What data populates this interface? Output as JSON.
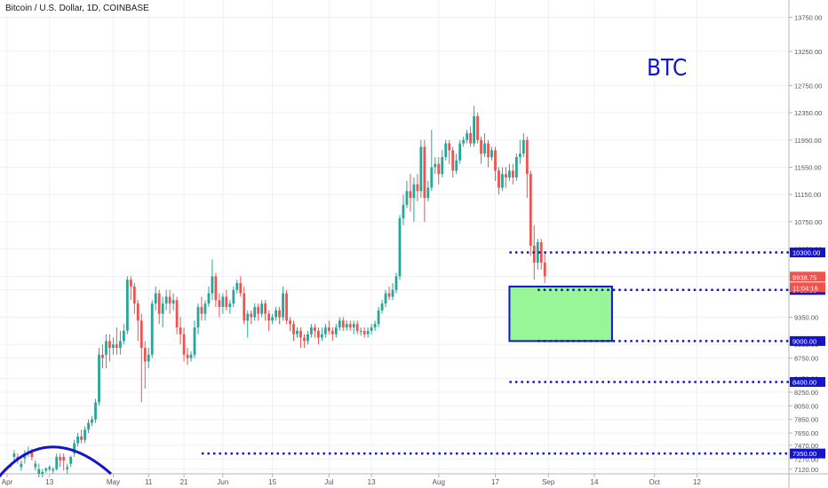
{
  "header": {
    "symbol": "Bitcoin / U.S. Dollar, 1D, COINBASE"
  },
  "annotation": {
    "text": "BTC",
    "color": "#1515c8"
  },
  "colors": {
    "up": "#26a69a",
    "down": "#ef5350",
    "line": "#1515c8",
    "zone_fill": "#98f598",
    "price_badge": "#ef5350"
  },
  "chart_data": {
    "type": "candlestick",
    "ylim": [
      7000,
      13900
    ],
    "y_ticks": [
      "13750.00",
      "13250.00",
      "12750.00",
      "12350.00",
      "11950.00",
      "11550.00",
      "11150.00",
      "10750.00",
      "10350.00",
      "9950.00",
      "9750.00",
      "9350.00",
      "8950.00",
      "8750.00",
      "8450.00",
      "8250.00",
      "8050.00",
      "7850.00",
      "7650.00",
      "7470.00",
      "7270.00",
      "7120.00"
    ],
    "x_ticks": [
      "Apr",
      "13",
      "May",
      "11",
      "21",
      "Jun",
      "15",
      "Jul",
      "13",
      "Aug",
      "17",
      "Sep",
      "14",
      "Oct",
      "12"
    ],
    "x_tick_days": [
      0,
      12,
      30,
      40,
      50,
      61,
      75,
      91,
      103,
      122,
      138,
      153,
      166,
      183,
      195
    ],
    "x_range_days": [
      -2,
      221
    ],
    "horizontal_levels": [
      {
        "price": 10300,
        "label": "10300.00",
        "from_day": 142
      },
      {
        "price": 9750,
        "label": "9750.00",
        "from_day": 150
      },
      {
        "price": 9000,
        "label": "9000.00",
        "from_day": 150
      },
      {
        "price": 8400,
        "label": "8400.00",
        "from_day": 142
      },
      {
        "price": 7350,
        "label": "7350.00",
        "from_day": 55
      }
    ],
    "zone": {
      "from_day": 142,
      "to_day": 171,
      "top": 9800,
      "bottom": 9000
    },
    "current_price": {
      "label": "9938.75",
      "countdown": "11:04:16"
    },
    "candles": [
      {
        "o": 7130,
        "c": 7135,
        "h": 7140,
        "l": 7120
      },
      {
        "o": 7160,
        "c": 7180,
        "h": 7200,
        "l": 7140
      },
      {
        "o": 7300,
        "c": 7350,
        "h": 7400,
        "l": 7250
      },
      {
        "o": 7300,
        "c": 7260,
        "h": 7350,
        "l": 7200
      },
      {
        "o": 7150,
        "c": 7200,
        "h": 7250,
        "l": 7100
      },
      {
        "o": 7280,
        "c": 7350,
        "h": 7400,
        "l": 7200
      },
      {
        "o": 7350,
        "c": 7380,
        "h": 7450,
        "l": 7300
      },
      {
        "o": 7380,
        "c": 7300,
        "h": 7420,
        "l": 7250
      },
      {
        "o": 7150,
        "c": 7200,
        "h": 7250,
        "l": 7100
      },
      {
        "o": 7050,
        "c": 7120,
        "h": 7200,
        "l": 7000
      },
      {
        "o": 7050,
        "c": 7080,
        "h": 7120,
        "l": 7000
      },
      {
        "o": 7100,
        "c": 7130,
        "h": 7150,
        "l": 7070
      },
      {
        "o": 7120,
        "c": 7150,
        "h": 7180,
        "l": 7090
      },
      {
        "o": 7100,
        "c": 7120,
        "h": 7150,
        "l": 7060
      },
      {
        "o": 7120,
        "c": 7300,
        "h": 7350,
        "l": 7100
      },
      {
        "o": 7300,
        "c": 7250,
        "h": 7350,
        "l": 7150
      },
      {
        "o": 7300,
        "c": 7250,
        "h": 7350,
        "l": 7100
      },
      {
        "o": 7120,
        "c": 7150,
        "h": 7200,
        "l": 7050
      },
      {
        "o": 7200,
        "c": 7300,
        "h": 7320,
        "l": 7150
      },
      {
        "o": 7350,
        "c": 7500,
        "h": 7550,
        "l": 7300
      },
      {
        "o": 7500,
        "c": 7600,
        "h": 7650,
        "l": 7450
      },
      {
        "o": 7600,
        "c": 7550,
        "h": 7700,
        "l": 7500
      },
      {
        "o": 7550,
        "c": 7700,
        "h": 7750,
        "l": 7500
      },
      {
        "o": 7700,
        "c": 7800,
        "h": 7850,
        "l": 7650
      },
      {
        "o": 7800,
        "c": 7850,
        "h": 7900,
        "l": 7750
      },
      {
        "o": 7850,
        "c": 8100,
        "h": 8150,
        "l": 7800
      },
      {
        "o": 8100,
        "c": 8800,
        "h": 8900,
        "l": 8050
      },
      {
        "o": 8800,
        "c": 8750,
        "h": 8950,
        "l": 8600
      },
      {
        "o": 8800,
        "c": 9000,
        "h": 9100,
        "l": 8600
      },
      {
        "o": 9000,
        "c": 8900,
        "h": 9100,
        "l": 8700
      },
      {
        "o": 8900,
        "c": 8950,
        "h": 9050,
        "l": 8800
      },
      {
        "o": 8950,
        "c": 8900,
        "h": 9200,
        "l": 8800
      },
      {
        "o": 8900,
        "c": 9000,
        "h": 9150,
        "l": 8800
      },
      {
        "o": 9000,
        "c": 9150,
        "h": 9250,
        "l": 8950
      },
      {
        "o": 9150,
        "c": 9900,
        "h": 9950,
        "l": 9100
      },
      {
        "o": 9900,
        "c": 9800,
        "h": 9950,
        "l": 9600
      },
      {
        "o": 9800,
        "c": 9550,
        "h": 9850,
        "l": 9400
      },
      {
        "o": 9550,
        "c": 9300,
        "h": 9600,
        "l": 9000
      },
      {
        "o": 9300,
        "c": 8900,
        "h": 9400,
        "l": 8100
      },
      {
        "o": 8900,
        "c": 8700,
        "h": 9000,
        "l": 8300
      },
      {
        "o": 8700,
        "c": 8800,
        "h": 8900,
        "l": 8600
      },
      {
        "o": 8800,
        "c": 9550,
        "h": 9600,
        "l": 8750
      },
      {
        "o": 9550,
        "c": 9700,
        "h": 9800,
        "l": 9450
      },
      {
        "o": 9700,
        "c": 9400,
        "h": 9750,
        "l": 9250
      },
      {
        "o": 9400,
        "c": 9550,
        "h": 9650,
        "l": 9200
      },
      {
        "o": 9550,
        "c": 9650,
        "h": 9750,
        "l": 9450
      },
      {
        "o": 9650,
        "c": 9550,
        "h": 9750,
        "l": 9400
      },
      {
        "o": 9550,
        "c": 9600,
        "h": 9700,
        "l": 9450
      },
      {
        "o": 9600,
        "c": 9200,
        "h": 9650,
        "l": 9100
      },
      {
        "o": 9200,
        "c": 9100,
        "h": 9350,
        "l": 8950
      },
      {
        "o": 9100,
        "c": 8800,
        "h": 9200,
        "l": 8700
      },
      {
        "o": 8800,
        "c": 8750,
        "h": 8900,
        "l": 8650
      },
      {
        "o": 8750,
        "c": 8800,
        "h": 8850,
        "l": 8700
      },
      {
        "o": 8800,
        "c": 9200,
        "h": 9300,
        "l": 8750
      },
      {
        "o": 9200,
        "c": 9500,
        "h": 9550,
        "l": 9100
      },
      {
        "o": 9500,
        "c": 9400,
        "h": 9650,
        "l": 9300
      },
      {
        "o": 9400,
        "c": 9550,
        "h": 9600,
        "l": 9300
      },
      {
        "o": 9550,
        "c": 9700,
        "h": 9800,
        "l": 9500
      },
      {
        "o": 9700,
        "c": 9950,
        "h": 10200,
        "l": 9600
      },
      {
        "o": 9950,
        "c": 9600,
        "h": 10000,
        "l": 9500
      },
      {
        "o": 9600,
        "c": 9500,
        "h": 9700,
        "l": 9350
      },
      {
        "o": 9500,
        "c": 9650,
        "h": 9700,
        "l": 9400
      },
      {
        "o": 9650,
        "c": 9500,
        "h": 9750,
        "l": 9450
      },
      {
        "o": 9500,
        "c": 9550,
        "h": 9600,
        "l": 9400
      },
      {
        "o": 9550,
        "c": 9750,
        "h": 9800,
        "l": 9500
      },
      {
        "o": 9750,
        "c": 9850,
        "h": 9900,
        "l": 9700
      },
      {
        "o": 9850,
        "c": 9700,
        "h": 9950,
        "l": 9650
      },
      {
        "o": 9700,
        "c": 9300,
        "h": 9800,
        "l": 9250
      },
      {
        "o": 9300,
        "c": 9400,
        "h": 9450,
        "l": 9050
      },
      {
        "o": 9400,
        "c": 9350,
        "h": 9450,
        "l": 9250
      },
      {
        "o": 9350,
        "c": 9500,
        "h": 9550,
        "l": 9300
      },
      {
        "o": 9500,
        "c": 9400,
        "h": 9550,
        "l": 9300
      },
      {
        "o": 9400,
        "c": 9550,
        "h": 9600,
        "l": 9350
      },
      {
        "o": 9550,
        "c": 9400,
        "h": 9600,
        "l": 9300
      },
      {
        "o": 9400,
        "c": 9300,
        "h": 9450,
        "l": 9150
      },
      {
        "o": 9300,
        "c": 9350,
        "h": 9400,
        "l": 9250
      },
      {
        "o": 9350,
        "c": 9450,
        "h": 9500,
        "l": 9300
      },
      {
        "o": 9450,
        "c": 9350,
        "h": 9500,
        "l": 9250
      },
      {
        "o": 9350,
        "c": 9700,
        "h": 9800,
        "l": 9300
      },
      {
        "o": 9700,
        "c": 9300,
        "h": 9750,
        "l": 9250
      },
      {
        "o": 9300,
        "c": 9250,
        "h": 9350,
        "l": 9150
      },
      {
        "o": 9250,
        "c": 9100,
        "h": 9300,
        "l": 9000
      },
      {
        "o": 9100,
        "c": 9150,
        "h": 9200,
        "l": 9050
      },
      {
        "o": 9150,
        "c": 9050,
        "h": 9200,
        "l": 8900
      },
      {
        "o": 9050,
        "c": 9000,
        "h": 9100,
        "l": 8900
      },
      {
        "o": 9000,
        "c": 9100,
        "h": 9150,
        "l": 8950
      },
      {
        "o": 9100,
        "c": 9200,
        "h": 9250,
        "l": 9050
      },
      {
        "o": 9200,
        "c": 9150,
        "h": 9250,
        "l": 9050
      },
      {
        "o": 9150,
        "c": 9050,
        "h": 9200,
        "l": 8950
      },
      {
        "o": 9050,
        "c": 9100,
        "h": 9200,
        "l": 9000
      },
      {
        "o": 9100,
        "c": 9200,
        "h": 9250,
        "l": 9050
      },
      {
        "o": 9200,
        "c": 9150,
        "h": 9300,
        "l": 9100
      },
      {
        "o": 9150,
        "c": 9100,
        "h": 9200,
        "l": 9000
      },
      {
        "o": 9100,
        "c": 9200,
        "h": 9250,
        "l": 9050
      },
      {
        "o": 9200,
        "c": 9300,
        "h": 9350,
        "l": 9150
      },
      {
        "o": 9300,
        "c": 9200,
        "h": 9350,
        "l": 9150
      },
      {
        "o": 9200,
        "c": 9250,
        "h": 9300,
        "l": 9150
      },
      {
        "o": 9250,
        "c": 9200,
        "h": 9300,
        "l": 9150
      },
      {
        "o": 9200,
        "c": 9250,
        "h": 9300,
        "l": 9100
      },
      {
        "o": 9250,
        "c": 9150,
        "h": 9300,
        "l": 9100
      },
      {
        "o": 9150,
        "c": 9150,
        "h": 9200,
        "l": 9080
      },
      {
        "o": 9150,
        "c": 9100,
        "h": 9200,
        "l": 9050
      },
      {
        "o": 9100,
        "c": 9150,
        "h": 9200,
        "l": 9050
      },
      {
        "o": 9150,
        "c": 9200,
        "h": 9250,
        "l": 9100
      },
      {
        "o": 9200,
        "c": 9250,
        "h": 9300,
        "l": 9150
      },
      {
        "o": 9250,
        "c": 9450,
        "h": 9500,
        "l": 9200
      },
      {
        "o": 9450,
        "c": 9550,
        "h": 9600,
        "l": 9400
      },
      {
        "o": 9550,
        "c": 9700,
        "h": 9750,
        "l": 9500
      },
      {
        "o": 9700,
        "c": 9650,
        "h": 9800,
        "l": 9600
      },
      {
        "o": 9650,
        "c": 9750,
        "h": 9850,
        "l": 9600
      },
      {
        "o": 9750,
        "c": 9950,
        "h": 10000,
        "l": 9700
      },
      {
        "o": 9950,
        "c": 10800,
        "h": 10850,
        "l": 9900
      },
      {
        "o": 10800,
        "c": 11000,
        "h": 11150,
        "l": 10700
      },
      {
        "o": 11000,
        "c": 11200,
        "h": 11350,
        "l": 10950
      },
      {
        "o": 11200,
        "c": 11100,
        "h": 11450,
        "l": 10900
      },
      {
        "o": 11100,
        "c": 11300,
        "h": 11400,
        "l": 10750
      },
      {
        "o": 11300,
        "c": 11200,
        "h": 11450,
        "l": 11050
      },
      {
        "o": 11200,
        "c": 11850,
        "h": 11950,
        "l": 11100
      },
      {
        "o": 11850,
        "c": 11100,
        "h": 11950,
        "l": 10750
      },
      {
        "o": 11100,
        "c": 11250,
        "h": 11350,
        "l": 11050
      },
      {
        "o": 11250,
        "c": 11550,
        "h": 12100,
        "l": 11200
      },
      {
        "o": 11550,
        "c": 11600,
        "h": 11700,
        "l": 11450
      },
      {
        "o": 11600,
        "c": 11450,
        "h": 11700,
        "l": 11300
      },
      {
        "o": 11450,
        "c": 11700,
        "h": 11800,
        "l": 11400
      },
      {
        "o": 11700,
        "c": 11900,
        "h": 11950,
        "l": 11650
      },
      {
        "o": 11900,
        "c": 11800,
        "h": 11950,
        "l": 11600
      },
      {
        "o": 11800,
        "c": 11500,
        "h": 11850,
        "l": 11400
      },
      {
        "o": 11500,
        "c": 11650,
        "h": 11750,
        "l": 11450
      },
      {
        "o": 11650,
        "c": 11900,
        "h": 11950,
        "l": 11600
      },
      {
        "o": 11900,
        "c": 11950,
        "h": 12000,
        "l": 11850
      },
      {
        "o": 11950,
        "c": 12050,
        "h": 12100,
        "l": 11900
      },
      {
        "o": 12050,
        "c": 11900,
        "h": 12150,
        "l": 11850
      },
      {
        "o": 11900,
        "c": 12300,
        "h": 12450,
        "l": 11850
      },
      {
        "o": 12300,
        "c": 11950,
        "h": 12350,
        "l": 11900
      },
      {
        "o": 11950,
        "c": 11750,
        "h": 12000,
        "l": 11600
      },
      {
        "o": 11750,
        "c": 11900,
        "h": 12050,
        "l": 11700
      },
      {
        "o": 11900,
        "c": 11700,
        "h": 11950,
        "l": 11550
      },
      {
        "o": 11700,
        "c": 11800,
        "h": 11850,
        "l": 11650
      },
      {
        "o": 11800,
        "c": 11500,
        "h": 11850,
        "l": 11350
      },
      {
        "o": 11500,
        "c": 11250,
        "h": 11550,
        "l": 11150
      },
      {
        "o": 11250,
        "c": 11450,
        "h": 11550,
        "l": 11200
      },
      {
        "o": 11450,
        "c": 11400,
        "h": 11550,
        "l": 11250
      },
      {
        "o": 11400,
        "c": 11500,
        "h": 11600,
        "l": 11350
      },
      {
        "o": 11500,
        "c": 11400,
        "h": 11600,
        "l": 11300
      },
      {
        "o": 11400,
        "c": 11700,
        "h": 11750,
        "l": 11350
      },
      {
        "o": 11700,
        "c": 11750,
        "h": 11950,
        "l": 11600
      },
      {
        "o": 11750,
        "c": 11950,
        "h": 12050,
        "l": 11700
      },
      {
        "o": 11950,
        "c": 11450,
        "h": 12000,
        "l": 11100
      },
      {
        "o": 11450,
        "c": 10400,
        "h": 11500,
        "l": 10250
      },
      {
        "o": 10400,
        "c": 10150,
        "h": 10700,
        "l": 9900
      },
      {
        "o": 10150,
        "c": 10450,
        "h": 10500,
        "l": 10050
      },
      {
        "o": 10450,
        "c": 10150,
        "h": 10500,
        "l": 10050
      },
      {
        "o": 10150,
        "c": 9950,
        "h": 10300,
        "l": 9850
      }
    ]
  }
}
